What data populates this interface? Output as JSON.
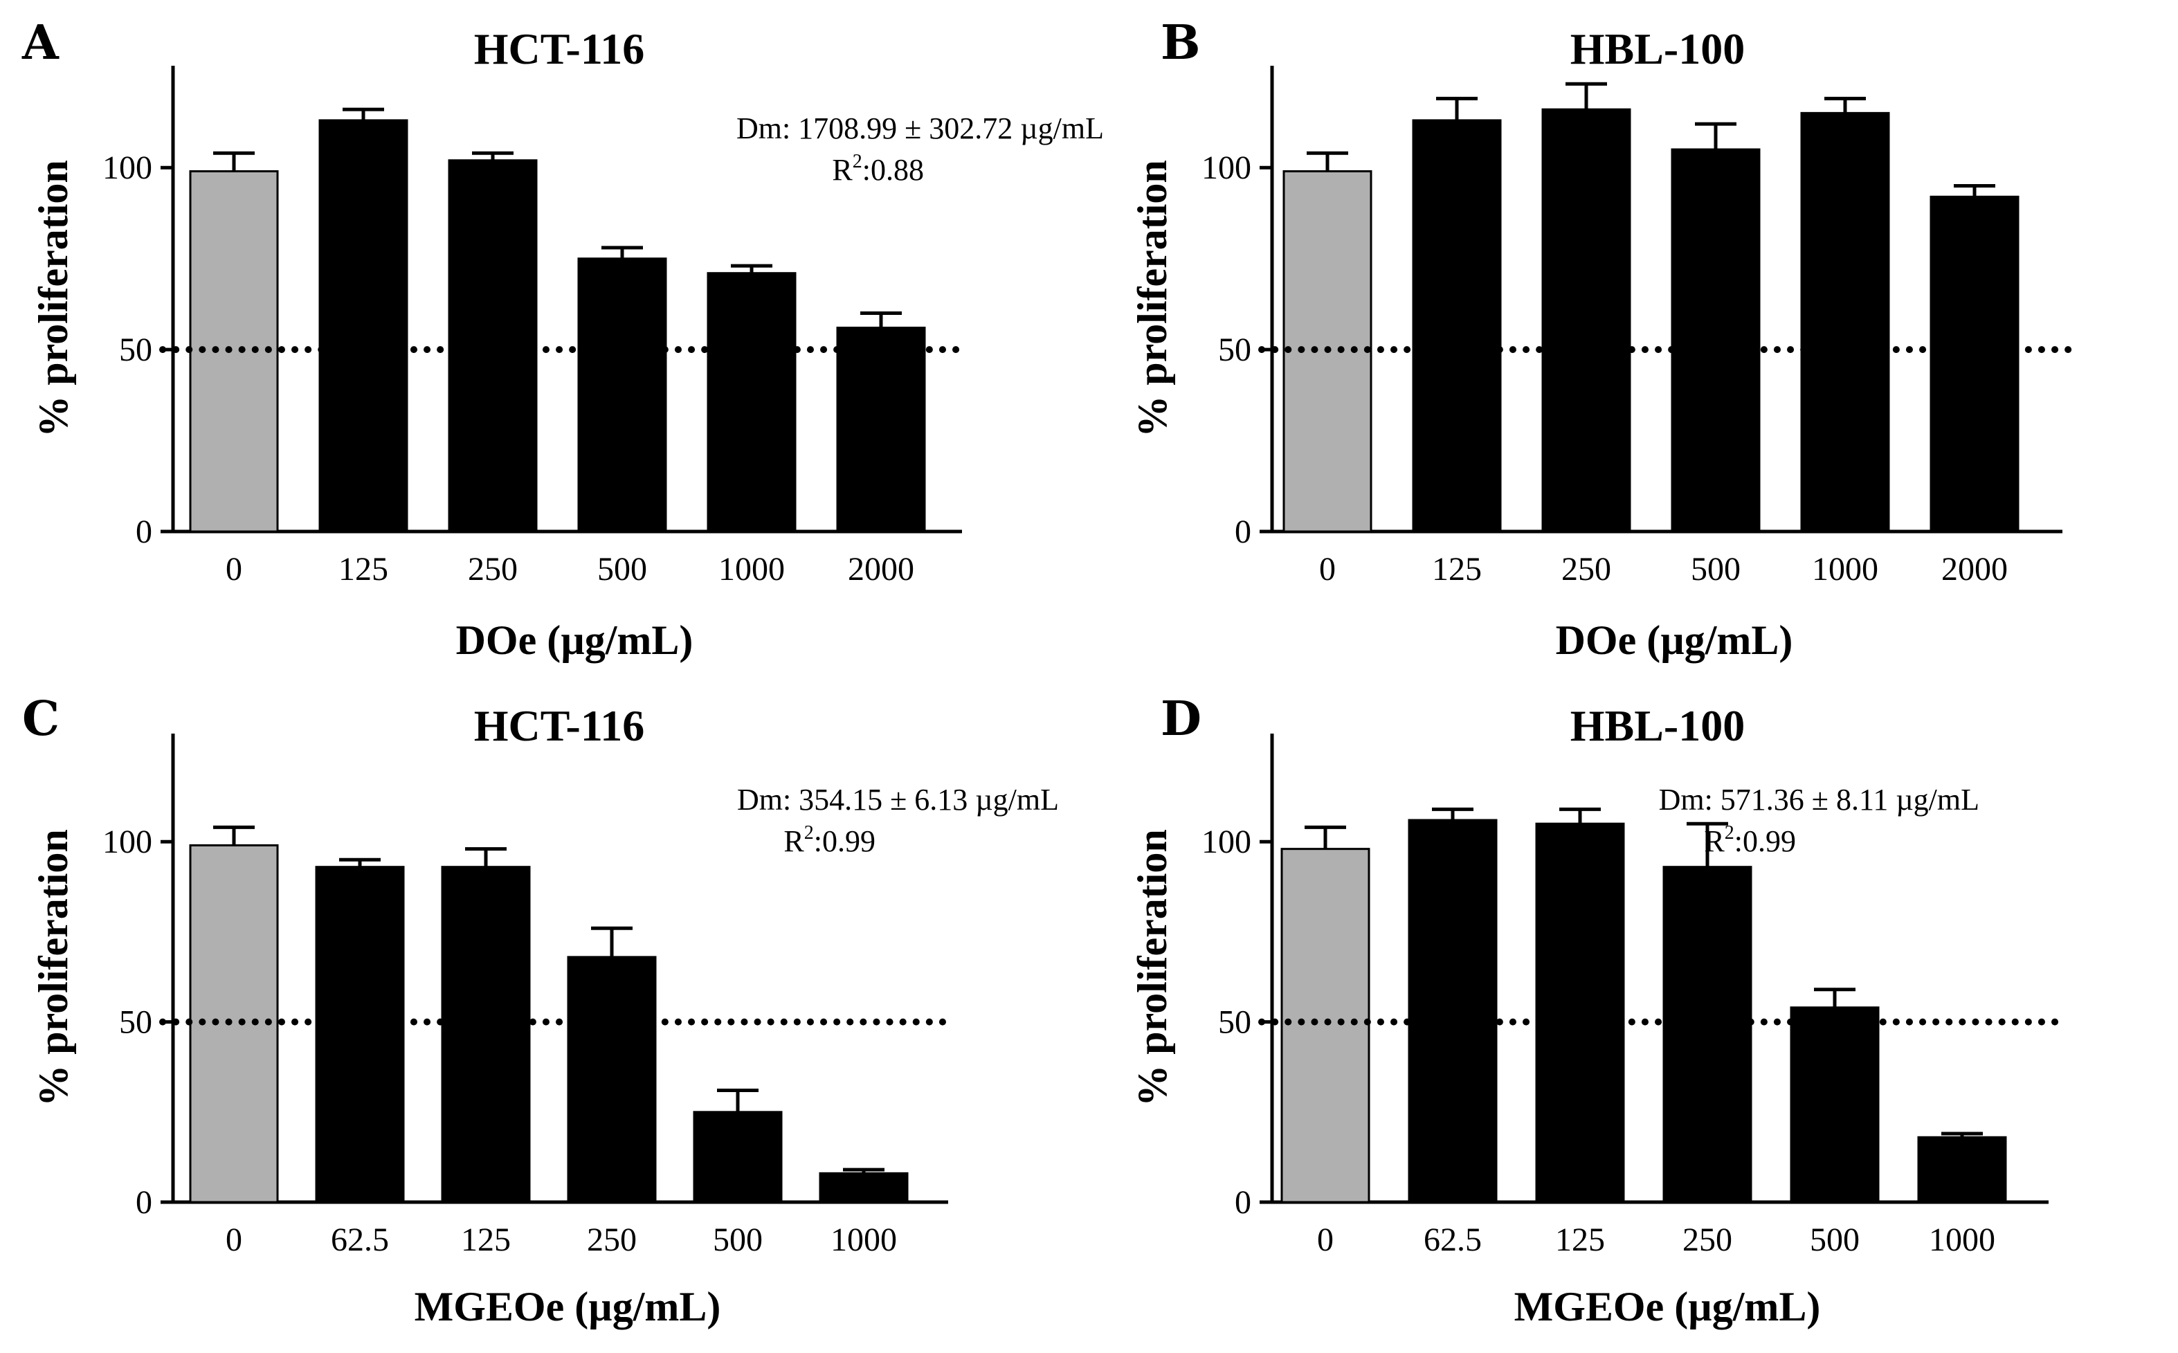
{
  "figure": {
    "colors": {
      "control": "#b0b0b0",
      "treatment": "#000000",
      "axis": "#000000"
    }
  },
  "chart_data": [
    {
      "panel": "A",
      "type": "bar",
      "title": "HCT-116",
      "xlabel": "DOe (µg/mL)",
      "ylabel": "% proliferation",
      "categories": [
        "0",
        "125",
        "250",
        "500",
        "1000",
        "2000"
      ],
      "values": [
        99,
        113,
        102,
        75,
        71,
        56
      ],
      "errors": [
        5,
        3,
        2,
        3,
        2,
        4
      ],
      "ylim": [
        0,
        128
      ],
      "yticks": [
        0,
        50,
        100
      ],
      "reference_line": 50,
      "annotation": {
        "line1": "Dm: 1708.99 ± 302.72 µg/mL",
        "line2_base": "R",
        "line2_sup": "2",
        "line2_rest": ":0.88"
      }
    },
    {
      "panel": "B",
      "type": "bar",
      "title": "HBL-100",
      "xlabel": "DOe (µg/mL)",
      "ylabel": "% proliferation",
      "categories": [
        "0",
        "125",
        "250",
        "500",
        "1000",
        "2000"
      ],
      "values": [
        99,
        113,
        116,
        105,
        115,
        92
      ],
      "errors": [
        5,
        6,
        7,
        7,
        4,
        3
      ],
      "ylim": [
        0,
        128
      ],
      "yticks": [
        0,
        50,
        100
      ],
      "reference_line": 50,
      "annotation": null
    },
    {
      "panel": "C",
      "type": "bar",
      "title": "HCT-116",
      "xlabel": "MGEOe (µg/mL)",
      "ylabel": "% proliferation",
      "categories": [
        "0",
        "62.5",
        "125",
        "250",
        "500",
        "1000"
      ],
      "values": [
        99,
        93,
        93,
        68,
        25,
        8
      ],
      "errors": [
        5,
        2,
        5,
        8,
        6,
        1
      ],
      "ylim": [
        0,
        130
      ],
      "yticks": [
        0,
        50,
        100
      ],
      "reference_line": 50,
      "annotation": {
        "line1": "Dm: 354.15 ± 6.13 µg/mL",
        "line2_base": "R",
        "line2_sup": "2",
        "line2_rest": ":0.99"
      }
    },
    {
      "panel": "D",
      "type": "bar",
      "title": "HBL-100",
      "xlabel": "MGEOe (µg/mL)",
      "ylabel": "% proliferation",
      "categories": [
        "0",
        "62.5",
        "125",
        "250",
        "500",
        "1000"
      ],
      "values": [
        98,
        106,
        105,
        93,
        54,
        18
      ],
      "errors": [
        6,
        3,
        4,
        12,
        5,
        1
      ],
      "ylim": [
        0,
        130
      ],
      "yticks": [
        0,
        50,
        100
      ],
      "reference_line": 50,
      "annotation": {
        "line1": "Dm: 571.36 ± 8.11 µg/mL",
        "line2_base": "R",
        "line2_sup": "2",
        "line2_rest": ":0.99"
      }
    }
  ]
}
